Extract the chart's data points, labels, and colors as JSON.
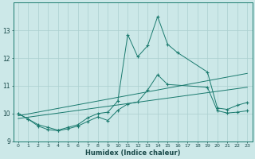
{
  "xlabel": "Humidex (Indice chaleur)",
  "ylabel": "",
  "color_main": "#1a7a6e",
  "bg_color": "#cce8e8",
  "grid_color": "#aacfcf",
  "ylim": [
    9.0,
    14.0
  ],
  "xlim": [
    -0.5,
    23.5
  ],
  "yticks": [
    9,
    10,
    11,
    12,
    13
  ],
  "xticks": [
    0,
    1,
    2,
    3,
    4,
    5,
    6,
    7,
    8,
    9,
    10,
    11,
    12,
    13,
    14,
    15,
    16,
    17,
    18,
    19,
    20,
    21,
    22,
    23
  ],
  "figsize": [
    3.2,
    2.0
  ],
  "dpi": 100,
  "series": [
    {
      "x": [
        0,
        1,
        2,
        3,
        4,
        5,
        6,
        7,
        8,
        9,
        10,
        11,
        12,
        13,
        14,
        15,
        16,
        19,
        20,
        21,
        22,
        23
      ],
      "y": [
        10.0,
        9.8,
        9.6,
        9.5,
        9.4,
        9.5,
        9.6,
        9.85,
        10.0,
        10.05,
        10.45,
        12.85,
        12.05,
        12.45,
        13.5,
        12.5,
        12.2,
        11.5,
        10.2,
        10.15,
        10.3,
        10.4
      ]
    },
    {
      "x": [
        0,
        1,
        2,
        3,
        4,
        5,
        6,
        7,
        8,
        9,
        10,
        11,
        12,
        13,
        14,
        15,
        19,
        20,
        21,
        22,
        23
      ],
      "y": [
        10.0,
        9.8,
        9.55,
        9.42,
        9.38,
        9.45,
        9.55,
        9.72,
        9.88,
        9.75,
        10.12,
        10.35,
        10.42,
        10.85,
        11.4,
        11.05,
        10.95,
        10.1,
        10.02,
        10.05,
        10.1
      ]
    },
    {
      "x": [
        0,
        23
      ],
      "y": [
        9.82,
        10.95
      ]
    },
    {
      "x": [
        0,
        23
      ],
      "y": [
        9.92,
        11.45
      ]
    }
  ]
}
